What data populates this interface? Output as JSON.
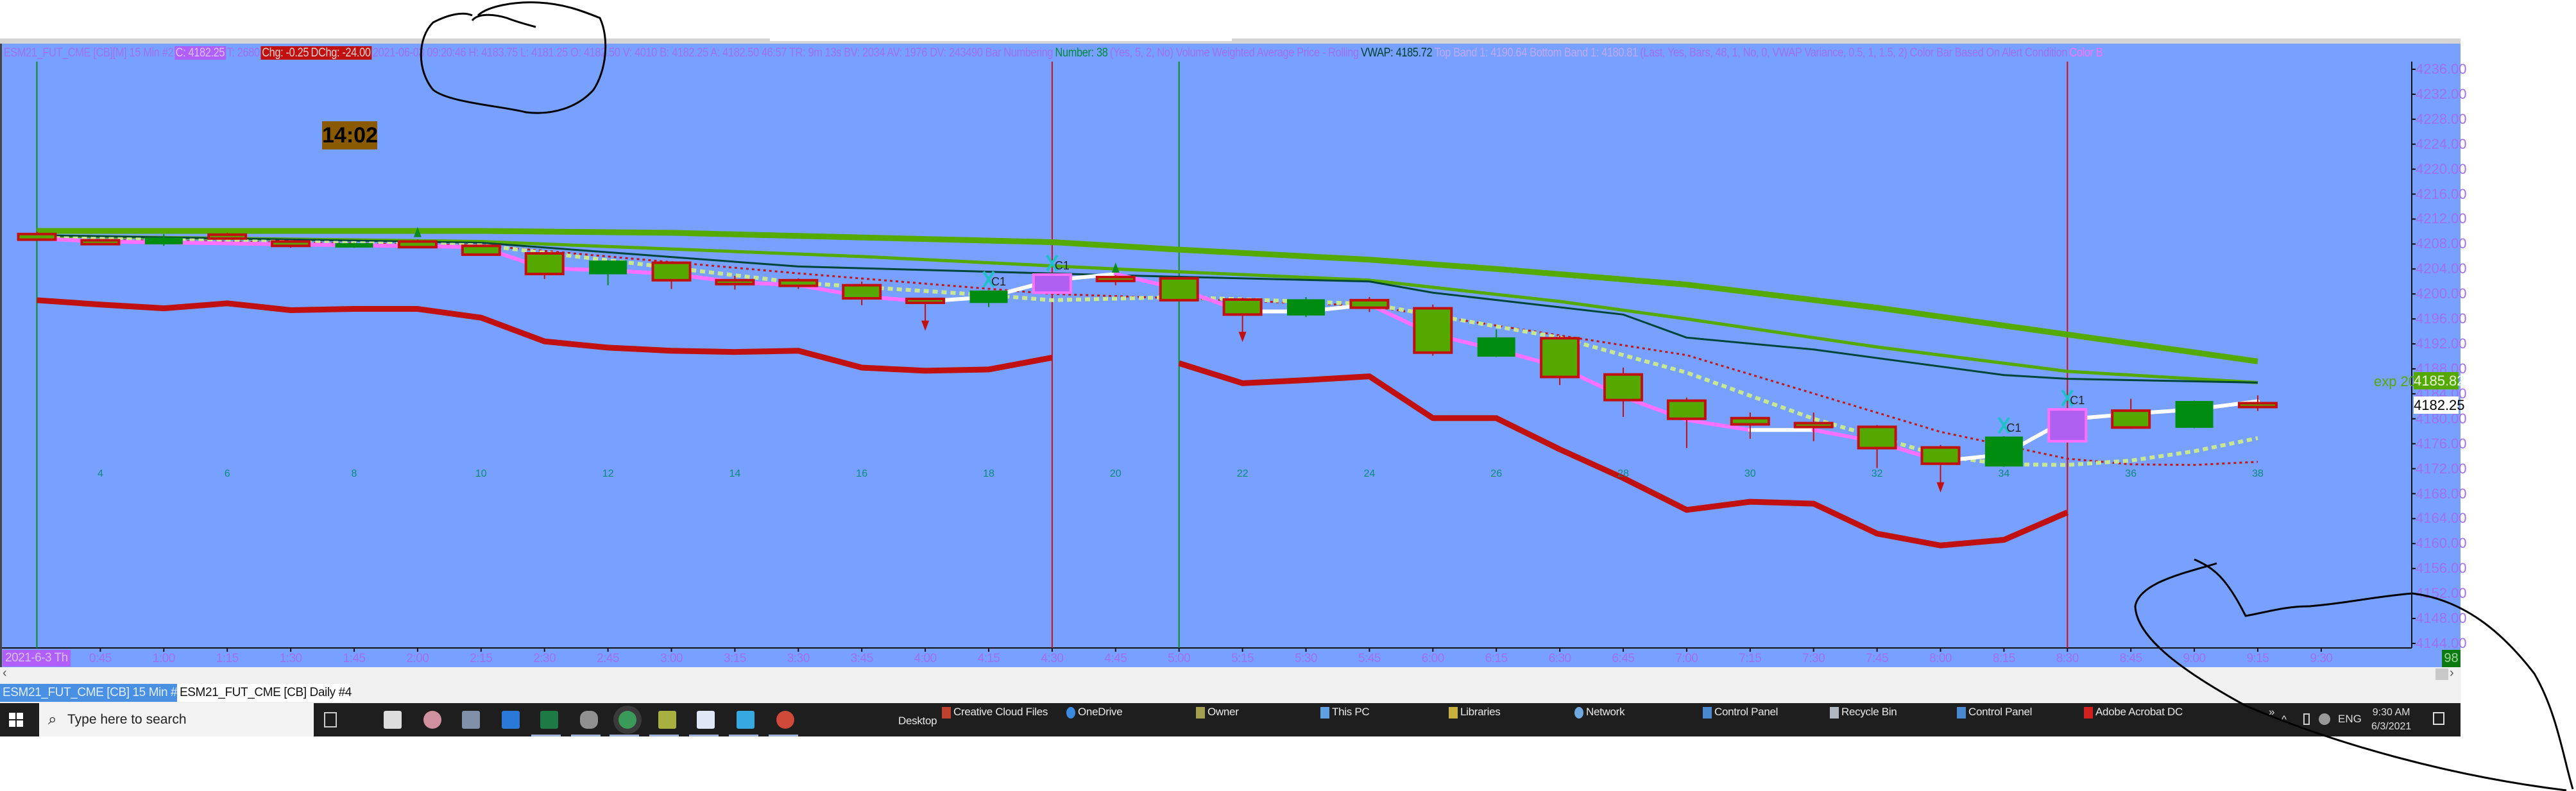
{
  "header": {
    "symbol": "ESM21_FUT_CME [CB][M]  15 Min   #2",
    "close": "C: 4182.25",
    "ticks": "T: 2680",
    "chg": "Chg: -0.25",
    "dchg": "DChg: -24.00",
    "details": "2021-06-03 09:20:46 H: 4183.75 L: 4181.25 O: 4182.50 V: 4010 B: 4182.25 A: 4182.50 46:57 TR: 9m 13s BV: 2034 AV: 1976 DV: 243490 Bar Numbering",
    "bar_number": "Number: 38",
    "vwap_study": "(Yes, 5, 2, No)  Volume Weighted Average Price - Rolling",
    "vwap": "VWAP: 4185.72",
    "bands": "Top Band 1: 4190.64  Bottom Band 1: 4180.81",
    "vwap_params": "(Last, Yes, Bars, 48, 1, No, 0, VWAP Variance, 0.5, 1, 1.5, 2)  Color Bar Based On Alert Condition",
    "color_bar": "Color B"
  },
  "countdown": "14:02",
  "price_markers": {
    "exp_label": "exp 20",
    "exp_value": "4185.82",
    "last_price": "4182.25",
    "bar_count": "98"
  },
  "tabs": [
    {
      "label": "ESM21_FUT_CME [CB]  15 Min  #2",
      "active": true
    },
    {
      "label": "ESM21_FUT_CME [CB]  Daily  #4",
      "active": false
    }
  ],
  "scroll": {
    "left": "‹",
    "right": "›"
  },
  "taskbar": {
    "search_placeholder": "Type here to search",
    "apps": [
      "store",
      "snipping-tool",
      "calculator",
      "media-player",
      "excel",
      "database",
      "globe-browser",
      "file-manager",
      "notepad",
      "trading-app",
      "chrome"
    ],
    "active_app": "globe-browser",
    "toolbar_label": "Desktop",
    "toolbar_items": [
      "Creative Cloud Files",
      "OneDrive",
      "Owner",
      "This PC",
      "Libraries",
      "Network",
      "Control Panel",
      "Recycle Bin",
      "Control Panel",
      "Adobe Acrobat DC"
    ],
    "overflow": "»",
    "tray_up": "^",
    "language": "ENG",
    "time": "9:30 AM",
    "date": "6/3/2021"
  },
  "chart_data": {
    "type": "candlestick",
    "date_label": "2021-6-3 Th",
    "time_ticks": [
      {
        "bar": 4,
        "label": "0:45"
      },
      {
        "bar": 5,
        "label": "1:00"
      },
      {
        "bar": 6,
        "label": "1:15"
      },
      {
        "bar": 7,
        "label": "1:30"
      },
      {
        "bar": 8,
        "label": "1:45"
      },
      {
        "bar": 9,
        "label": "2:00"
      },
      {
        "bar": 10,
        "label": "2:15"
      },
      {
        "bar": 11,
        "label": "2:30"
      },
      {
        "bar": 12,
        "label": "2:45"
      },
      {
        "bar": 13,
        "label": "3:00"
      },
      {
        "bar": 14,
        "label": "3:15"
      },
      {
        "bar": 15,
        "label": "3:30"
      },
      {
        "bar": 16,
        "label": "3:45"
      },
      {
        "bar": 17,
        "label": "4:00"
      },
      {
        "bar": 18,
        "label": "4:15"
      },
      {
        "bar": 19,
        "label": "4:30"
      },
      {
        "bar": 20,
        "label": "4:45"
      },
      {
        "bar": 21,
        "label": "5:00"
      },
      {
        "bar": 22,
        "label": "5:15"
      },
      {
        "bar": 23,
        "label": "5:30"
      },
      {
        "bar": 24,
        "label": "5:45"
      },
      {
        "bar": 25,
        "label": "6:00"
      },
      {
        "bar": 26,
        "label": "6:15"
      },
      {
        "bar": 27,
        "label": "6:30"
      },
      {
        "bar": 28,
        "label": "6:45"
      },
      {
        "bar": 29,
        "label": "7:00"
      },
      {
        "bar": 30,
        "label": "7:15"
      },
      {
        "bar": 31,
        "label": "7:30"
      },
      {
        "bar": 32,
        "label": "7:45"
      },
      {
        "bar": 33,
        "label": "8:00"
      },
      {
        "bar": 34,
        "label": "8:15"
      },
      {
        "bar": 35,
        "label": "8:30"
      },
      {
        "bar": 36,
        "label": "8:45"
      },
      {
        "bar": 37,
        "label": "9:00"
      },
      {
        "bar": 38,
        "label": "9:15"
      },
      {
        "bar": 39,
        "label": "9:30"
      }
    ],
    "price_ticks": [
      "4236.00",
      "4232.00",
      "4228.00",
      "4224.00",
      "4220.00",
      "4216.00",
      "4212.00",
      "4208.00",
      "4204.00",
      "4200.00",
      "4196.00",
      "4192.00",
      "4188.00",
      "4184.00",
      "4180.00",
      "4176.00",
      "4172.00",
      "4168.00",
      "4164.00",
      "4160.00",
      "4156.00",
      "4152.00",
      "4148.00",
      "4144.00"
    ],
    "ylim": [
      4144,
      4236
    ],
    "bar_number_labels": [
      "4",
      "6",
      "8",
      "10",
      "12",
      "14",
      "16",
      "18",
      "20",
      "22",
      "24",
      "26",
      "28",
      "30",
      "32",
      "34",
      "36",
      "38"
    ],
    "candles": [
      {
        "bar": 3,
        "o": 4209.6,
        "h": 4210.0,
        "l": 4208.5,
        "c": 4208.7,
        "style": "down"
      },
      {
        "bar": 4,
        "o": 4208.6,
        "h": 4208.8,
        "l": 4207.8,
        "c": 4208.0,
        "style": "down"
      },
      {
        "bar": 5,
        "o": 4208.0,
        "h": 4209.6,
        "l": 4207.7,
        "c": 4209.0,
        "style": "up"
      },
      {
        "bar": 6,
        "o": 4209.5,
        "h": 4209.8,
        "l": 4209.0,
        "c": 4209.2,
        "style": "down"
      },
      {
        "bar": 7,
        "o": 4208.4,
        "h": 4208.6,
        "l": 4207.4,
        "c": 4207.7,
        "style": "down"
      },
      {
        "bar": 8,
        "o": 4207.6,
        "h": 4208.2,
        "l": 4207.4,
        "c": 4208.1,
        "style": "up"
      },
      {
        "bar": 9,
        "o": 4208.4,
        "h": 4208.7,
        "l": 4207.3,
        "c": 4207.5,
        "style": "down"
      },
      {
        "bar": 10,
        "o": 4207.7,
        "h": 4207.9,
        "l": 4206.2,
        "c": 4206.3,
        "style": "down"
      },
      {
        "bar": 11,
        "o": 4206.5,
        "h": 4206.7,
        "l": 4202.4,
        "c": 4203.2,
        "style": "down"
      },
      {
        "bar": 12,
        "o": 4203.2,
        "h": 4205.4,
        "l": 4201.4,
        "c": 4205.3,
        "style": "up"
      },
      {
        "bar": 13,
        "o": 4205.0,
        "h": 4205.2,
        "l": 4200.8,
        "c": 4202.2,
        "style": "down"
      },
      {
        "bar": 14,
        "o": 4202.2,
        "h": 4202.9,
        "l": 4200.7,
        "c": 4202.0,
        "style": "down"
      },
      {
        "bar": 15,
        "o": 4202.2,
        "h": 4202.5,
        "l": 4200.8,
        "c": 4201.3,
        "style": "down"
      },
      {
        "bar": 16,
        "o": 4201.4,
        "h": 4202.0,
        "l": 4198.2,
        "c": 4199.3,
        "style": "down"
      },
      {
        "bar": 17,
        "o": 4199.2,
        "h": 4199.4,
        "l": 4198.4,
        "c": 4198.9,
        "style": "down"
      },
      {
        "bar": 18,
        "o": 4198.6,
        "h": 4200.6,
        "l": 4197.9,
        "c": 4200.5,
        "style": "up"
      },
      {
        "bar": 19,
        "o": 4200.2,
        "h": 4203.2,
        "l": 4200.0,
        "c": 4203.1,
        "style": "alert"
      },
      {
        "bar": 20,
        "o": 4202.7,
        "h": 4203.0,
        "l": 4201.4,
        "c": 4202.2,
        "style": "down"
      },
      {
        "bar": 21,
        "o": 4202.5,
        "h": 4202.7,
        "l": 4198.9,
        "c": 4199.0,
        "style": "down"
      },
      {
        "bar": 22,
        "o": 4199.1,
        "h": 4199.4,
        "l": 4196.6,
        "c": 4196.7,
        "style": "down"
      },
      {
        "bar": 23,
        "o": 4196.6,
        "h": 4199.5,
        "l": 4196.3,
        "c": 4199.1,
        "style": "up"
      },
      {
        "bar": 24,
        "o": 4199.0,
        "h": 4199.5,
        "l": 4197.1,
        "c": 4197.8,
        "style": "down"
      },
      {
        "bar": 25,
        "o": 4197.7,
        "h": 4198.3,
        "l": 4190.1,
        "c": 4190.6,
        "style": "down"
      },
      {
        "bar": 26,
        "o": 4190.0,
        "h": 4194.3,
        "l": 4189.9,
        "c": 4193.0,
        "style": "up"
      },
      {
        "bar": 27,
        "o": 4192.9,
        "h": 4193.3,
        "l": 4185.4,
        "c": 4186.7,
        "style": "down"
      },
      {
        "bar": 28,
        "o": 4187.1,
        "h": 4188.2,
        "l": 4180.3,
        "c": 4183.0,
        "style": "down"
      },
      {
        "bar": 29,
        "o": 4182.9,
        "h": 4183.4,
        "l": 4175.3,
        "c": 4180.0,
        "style": "down"
      },
      {
        "bar": 30,
        "o": 4180.1,
        "h": 4181.0,
        "l": 4176.8,
        "c": 4179.1,
        "style": "down"
      },
      {
        "bar": 31,
        "o": 4179.3,
        "h": 4181.0,
        "l": 4176.4,
        "c": 4178.7,
        "style": "down"
      },
      {
        "bar": 32,
        "o": 4178.7,
        "h": 4179.0,
        "l": 4172.1,
        "c": 4175.3,
        "style": "down"
      },
      {
        "bar": 33,
        "o": 4175.4,
        "h": 4175.8,
        "l": 4172.5,
        "c": 4172.8,
        "style": "down"
      },
      {
        "bar": 34,
        "o": 4172.4,
        "h": 4177.2,
        "l": 4172.3,
        "c": 4177.1,
        "style": "up"
      },
      {
        "bar": 35,
        "o": 4176.4,
        "h": 4181.6,
        "l": 4176.3,
        "c": 4181.5,
        "style": "alert"
      },
      {
        "bar": 36,
        "o": 4181.3,
        "h": 4183.2,
        "l": 4178.4,
        "c": 4178.6,
        "style": "down"
      },
      {
        "bar": 37,
        "o": 4178.6,
        "h": 4182.9,
        "l": 4178.5,
        "c": 4182.8,
        "style": "up"
      },
      {
        "bar": 38,
        "o": 4182.5,
        "h": 4183.75,
        "l": 4181.25,
        "c": 4182.25,
        "style": "down"
      }
    ],
    "lines": [
      {
        "id": "slow-ma",
        "color": "#55aa00",
        "points": [
          [
            3,
            4210.1
          ],
          [
            10,
            4210.1
          ],
          [
            13,
            4209.8
          ],
          [
            15,
            4209.3
          ],
          [
            19,
            4208.3
          ],
          [
            21,
            4207.1
          ],
          [
            24,
            4205.5
          ],
          [
            26,
            4204.0
          ],
          [
            29,
            4201.5
          ],
          [
            32,
            4197.8
          ],
          [
            35,
            4193.5
          ],
          [
            38,
            4189.2
          ]
        ]
      },
      {
        "id": "exp-20",
        "name": "exp 20",
        "color": "#55aa00",
        "points": [
          [
            3,
            4209.3
          ],
          [
            10,
            4208.4
          ],
          [
            16,
            4206.0
          ],
          [
            20,
            4204.0
          ],
          [
            24,
            4202.2
          ],
          [
            27,
            4198.8
          ],
          [
            29,
            4196.0
          ],
          [
            32,
            4191.5
          ],
          [
            35,
            4187.6
          ],
          [
            38,
            4185.8
          ]
        ]
      },
      {
        "id": "vwap",
        "color": "#00443a",
        "points": [
          [
            3,
            4209.4
          ],
          [
            10,
            4208.2
          ],
          [
            15,
            4204.4
          ],
          [
            20,
            4203.0
          ],
          [
            24,
            4202.0
          ],
          [
            25,
            4200.2
          ],
          [
            28,
            4196.7
          ],
          [
            29,
            4193.0
          ],
          [
            31,
            4191.1
          ],
          [
            34,
            4187.0
          ],
          [
            35,
            4186.4
          ],
          [
            38,
            4185.8
          ]
        ]
      },
      {
        "id": "red-dotted",
        "color": "#c01818",
        "points": [
          [
            3,
            4208.8
          ],
          [
            10,
            4207.8
          ],
          [
            15,
            4203.3
          ],
          [
            19,
            4200.0
          ],
          [
            21,
            4199.3
          ],
          [
            24,
            4198.1
          ],
          [
            29,
            4190.2
          ],
          [
            33,
            4177.9
          ],
          [
            35,
            4173.6
          ],
          [
            36,
            4172.7
          ],
          [
            37,
            4172.6
          ],
          [
            38,
            4173.1
          ]
        ]
      },
      {
        "id": "light-dotted",
        "color": "#c8e890",
        "points": [
          [
            3,
            4209.0
          ],
          [
            10,
            4207.8
          ],
          [
            15,
            4201.8
          ],
          [
            18,
            4199.8
          ],
          [
            19,
            4199.0
          ],
          [
            21,
            4199.5
          ],
          [
            24,
            4198.4
          ],
          [
            27,
            4193.0
          ],
          [
            29,
            4187.4
          ],
          [
            31,
            4180.0
          ],
          [
            33,
            4174.1
          ],
          [
            34,
            4172.7
          ],
          [
            35,
            4172.6
          ],
          [
            36,
            4173.3
          ],
          [
            37,
            4174.8
          ],
          [
            38,
            4176.9
          ]
        ]
      },
      {
        "id": "close-trend",
        "color": "#ff70ff",
        "alt_color": "#ffffff",
        "points": [
          [
            3,
            4208.9
          ],
          [
            4,
            4208.4
          ],
          [
            10,
            4207.5
          ],
          [
            11,
            4204.1
          ],
          [
            12,
            4203.8
          ],
          [
            13,
            4203.2
          ],
          [
            14,
            4201.9
          ],
          [
            15,
            4201.4
          ],
          [
            16,
            4199.6
          ],
          [
            17,
            4198.8
          ],
          [
            18,
            4199.5
          ],
          [
            19,
            4202.2
          ],
          [
            20,
            4203.2
          ],
          [
            21,
            4200.8
          ],
          [
            22,
            4197.2
          ],
          [
            23,
            4197.2
          ],
          [
            24,
            4198.3
          ],
          [
            25,
            4193.5
          ],
          [
            26,
            4191.1
          ],
          [
            27,
            4188.3
          ],
          [
            28,
            4183.5
          ],
          [
            29,
            4179.8
          ],
          [
            30,
            4178.2
          ],
          [
            31,
            4178.2
          ],
          [
            32,
            4176.3
          ],
          [
            33,
            4173.2
          ],
          [
            34,
            4174.3
          ],
          [
            35,
            4179.9
          ],
          [
            36,
            4180.8
          ],
          [
            37,
            4181.5
          ],
          [
            38,
            4182.8
          ]
        ],
        "alt_segments_from": [
          17,
          18,
          19,
          22,
          23,
          30,
          33,
          34,
          35,
          36,
          37
        ]
      },
      {
        "id": "lower-band",
        "color": "#c01010",
        "points": [
          [
            3,
            4199.0
          ],
          [
            4,
            4198.3
          ],
          [
            5,
            4197.7
          ],
          [
            6,
            4198.5
          ],
          [
            7,
            4197.4
          ],
          [
            8,
            4197.6
          ],
          [
            9,
            4197.6
          ],
          [
            10,
            4196.2
          ],
          [
            11,
            4192.4
          ],
          [
            12,
            4191.4
          ],
          [
            13,
            4190.9
          ],
          [
            14,
            4190.7
          ],
          [
            15,
            4190.9
          ],
          [
            16,
            4188.2
          ],
          [
            17,
            4187.7
          ],
          [
            18,
            4187.9
          ],
          [
            19,
            4189.8
          ],
          [
            21,
            4188.9
          ],
          [
            22,
            4185.7
          ],
          [
            23,
            4186.2
          ],
          [
            24,
            4186.8
          ],
          [
            25,
            4180.1
          ],
          [
            26,
            4180.1
          ],
          [
            27,
            4175.1
          ],
          [
            28,
            4170.5
          ],
          [
            29,
            4165.4
          ],
          [
            30,
            4166.7
          ],
          [
            31,
            4166.4
          ],
          [
            32,
            4161.6
          ],
          [
            33,
            4159.7
          ],
          [
            34,
            4160.6
          ],
          [
            35,
            4165.0
          ]
        ],
        "gap_after": 19
      }
    ],
    "arrows": [
      {
        "bar": 9,
        "dir": "up",
        "color": "#0a8a20"
      },
      {
        "bar": 17,
        "dir": "down",
        "color": "#c01010"
      },
      {
        "bar": 20,
        "dir": "up",
        "color": "#0a8a20"
      },
      {
        "bar": 22,
        "dir": "down",
        "color": "#c01010"
      },
      {
        "bar": 33,
        "dir": "down",
        "color": "#c01010"
      }
    ],
    "cross_markers": [
      {
        "bar": 18,
        "label": "C1"
      },
      {
        "bar": 19,
        "label": "C1"
      },
      {
        "bar": 34,
        "label": "C1"
      },
      {
        "bar": 35,
        "label": "C1"
      }
    ],
    "vertical_lines": [
      {
        "bar": 3,
        "color": "#0a8a20"
      },
      {
        "bar": 19,
        "color": "#d01010"
      },
      {
        "bar": 21,
        "color": "#0a8a20"
      },
      {
        "bar": 35,
        "color": "#d01010"
      }
    ],
    "colors": {
      "background": "#78a0fe",
      "down_fill": "#55a800",
      "down_outline": "#c01010",
      "up_fill": "#008c10",
      "alert_fill": "#b060f0",
      "alert_outline": "#ff70ff"
    }
  }
}
